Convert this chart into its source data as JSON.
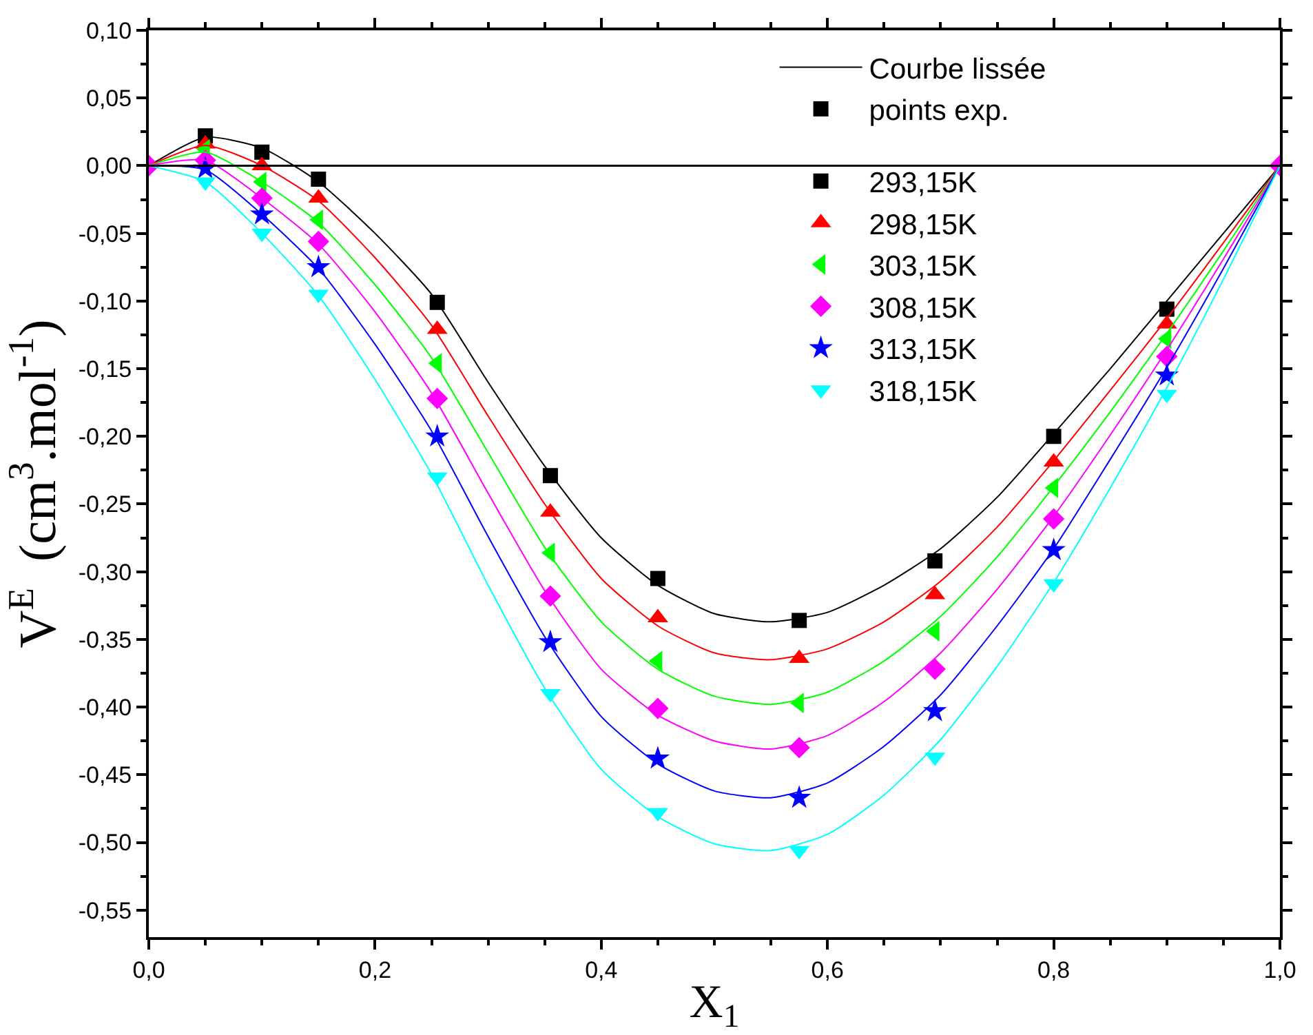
{
  "chart_data": {
    "type": "scatter",
    "xlabel": "X$_{1}$",
    "ylabel": "V$^{E}$  (cm$^{3}$.mol$^{-1}$)",
    "x": [
      0,
      0.05,
      0.1,
      0.15,
      0.255,
      0.355,
      0.45,
      0.575,
      0.695,
      0.8,
      0.9,
      1.0
    ],
    "xlim": [
      0,
      1
    ],
    "xticks": [
      {
        "value": 0,
        "label": "0,0"
      },
      {
        "value": 0.2,
        "label": "0,2"
      },
      {
        "value": 0.4,
        "label": "0,4"
      },
      {
        "value": 0.6,
        "label": "0,6"
      },
      {
        "value": 0.8,
        "label": "0,8"
      },
      {
        "value": 1,
        "label": "1,0"
      }
    ],
    "ylim": [
      -0.57,
      0.1
    ],
    "yticks": [
      {
        "value": 0.1,
        "label": "0,10"
      },
      {
        "value": 0.05,
        "label": "0,05"
      },
      {
        "value": 0,
        "label": "0,00"
      },
      {
        "value": -0.05,
        "label": "-0,05"
      },
      {
        "value": -0.1,
        "label": "-0,10"
      },
      {
        "value": -0.15,
        "label": "-0,15"
      },
      {
        "value": -0.2,
        "label": "-0,20"
      },
      {
        "value": -0.25,
        "label": "-0,25"
      },
      {
        "value": -0.3,
        "label": "-0,30"
      },
      {
        "value": -0.35,
        "label": "-0,35"
      },
      {
        "value": -0.4,
        "label": "-0,40"
      },
      {
        "value": -0.45,
        "label": "-0,45"
      },
      {
        "value": -0.5,
        "label": "-0,50"
      },
      {
        "value": -0.55,
        "label": "-0,55"
      }
    ],
    "legend": "top right",
    "ref_lines": [
      {
        "axis": "y",
        "value": 0,
        "color": "#000000"
      }
    ],
    "series": [
      {
        "name": "Courbe lissée",
        "type": "line",
        "color": "#000000",
        "x": [
          0,
          0.05,
          0.1,
          0.15,
          0.2,
          0.25,
          0.3,
          0.35,
          0.4,
          0.45,
          0.5,
          0.55,
          0.6,
          0.65,
          0.7,
          0.75,
          0.8,
          0.85,
          0.9,
          0.95,
          1
        ],
        "values": [
          0,
          0.021,
          0.013,
          -0.012,
          -0.05,
          -0.095,
          -0.16,
          -0.222,
          -0.275,
          -0.31,
          -0.331,
          -0.337,
          -0.33,
          -0.31,
          -0.283,
          -0.245,
          -0.198,
          -0.15,
          -0.1,
          -0.05,
          0
        ]
      },
      {
        "name": "points exp.",
        "type": "scatter",
        "color": "#000000",
        "marker": "square",
        "values": [
          null,
          null,
          null,
          null,
          null,
          null,
          null,
          null,
          null,
          null,
          null,
          null
        ]
      },
      {
        "name": "293,15K",
        "color": "#000000",
        "marker": "square",
        "values": [
          null,
          0.022,
          0.01,
          -0.01,
          -0.101,
          -0.229,
          -0.305,
          -0.336,
          -0.292,
          -0.2,
          -0.106,
          null
        ]
      },
      {
        "name": "298,15K",
        "color": "#ff0000",
        "marker": "triangle",
        "values": [
          null,
          0.016,
          0.0,
          -0.024,
          -0.121,
          -0.256,
          -0.334,
          -0.364,
          -0.317,
          -0.219,
          -0.117,
          null
        ]
      },
      {
        "name": "303,15K",
        "color": "#00ff00",
        "marker": "triangle-left",
        "values": [
          null,
          0.012,
          -0.012,
          -0.04,
          -0.146,
          -0.286,
          -0.366,
          -0.397,
          -0.344,
          -0.238,
          -0.128,
          null
        ]
      },
      {
        "name": "308,15K",
        "color": "#ff00ff",
        "marker": "diamond",
        "values": [
          0,
          0.004,
          -0.024,
          -0.056,
          -0.172,
          -0.318,
          -0.401,
          -0.43,
          -0.372,
          -0.261,
          -0.141,
          0
        ]
      },
      {
        "name": "313,15K",
        "color": "#0000ff",
        "marker": "star",
        "values": [
          null,
          -0.002,
          -0.036,
          -0.075,
          -0.2,
          -0.352,
          -0.438,
          -0.467,
          -0.403,
          -0.284,
          -0.155,
          null
        ]
      },
      {
        "name": "318,15K",
        "color": "#00ffff",
        "marker": "triangle-down",
        "values": [
          null,
          -0.012,
          -0.05,
          -0.095,
          -0.23,
          -0.39,
          -0.478,
          -0.506,
          -0.437,
          -0.309,
          -0.169,
          null
        ]
      },
      {
        "type": "line",
        "color": "#ff0000",
        "x": [
          0,
          0.05,
          0.1,
          0.15,
          0.2,
          0.25,
          0.3,
          0.35,
          0.4,
          0.45,
          0.5,
          0.55,
          0.6,
          0.65,
          0.7,
          0.75,
          0.8,
          0.85,
          0.9,
          0.95,
          1
        ],
        "values": [
          0,
          0.015,
          0.0,
          -0.026,
          -0.068,
          -0.118,
          -0.185,
          -0.25,
          -0.305,
          -0.34,
          -0.36,
          -0.365,
          -0.357,
          -0.337,
          -0.307,
          -0.267,
          -0.218,
          -0.166,
          -0.113,
          -0.057,
          0
        ]
      },
      {
        "type": "line",
        "color": "#00ff00",
        "x": [
          0,
          0.05,
          0.1,
          0.15,
          0.2,
          0.25,
          0.3,
          0.35,
          0.4,
          0.45,
          0.5,
          0.55,
          0.6,
          0.65,
          0.7,
          0.75,
          0.8,
          0.85,
          0.9,
          0.95,
          1
        ],
        "values": [
          0,
          0.01,
          -0.012,
          -0.042,
          -0.088,
          -0.142,
          -0.212,
          -0.282,
          -0.337,
          -0.372,
          -0.392,
          -0.398,
          -0.389,
          -0.366,
          -0.333,
          -0.289,
          -0.237,
          -0.182,
          -0.124,
          -0.063,
          0
        ]
      },
      {
        "type": "line",
        "color": "#ff00ff",
        "x": [
          0,
          0.05,
          0.1,
          0.15,
          0.2,
          0.25,
          0.3,
          0.35,
          0.4,
          0.45,
          0.5,
          0.55,
          0.6,
          0.65,
          0.7,
          0.75,
          0.8,
          0.85,
          0.9,
          0.95,
          1
        ],
        "values": [
          0,
          0.004,
          -0.024,
          -0.058,
          -0.108,
          -0.168,
          -0.242,
          -0.314,
          -0.372,
          -0.406,
          -0.425,
          -0.431,
          -0.421,
          -0.396,
          -0.36,
          -0.313,
          -0.259,
          -0.199,
          -0.136,
          -0.069,
          0
        ]
      },
      {
        "type": "line",
        "color": "#0000ff",
        "x": [
          0,
          0.05,
          0.1,
          0.15,
          0.2,
          0.25,
          0.3,
          0.35,
          0.4,
          0.45,
          0.5,
          0.55,
          0.6,
          0.65,
          0.7,
          0.75,
          0.8,
          0.85,
          0.9,
          0.95,
          1
        ],
        "values": [
          0,
          -0.003,
          -0.036,
          -0.076,
          -0.132,
          -0.196,
          -0.274,
          -0.348,
          -0.407,
          -0.442,
          -0.462,
          -0.467,
          -0.456,
          -0.429,
          -0.391,
          -0.34,
          -0.283,
          -0.217,
          -0.149,
          -0.076,
          0
        ]
      },
      {
        "type": "line",
        "color": "#00ffff",
        "x": [
          0,
          0.05,
          0.1,
          0.15,
          0.2,
          0.25,
          0.3,
          0.35,
          0.4,
          0.45,
          0.5,
          0.55,
          0.6,
          0.65,
          0.7,
          0.75,
          0.8,
          0.85,
          0.9,
          0.95,
          1
        ],
        "values": [
          0,
          -0.012,
          -0.05,
          -0.096,
          -0.158,
          -0.228,
          -0.31,
          -0.386,
          -0.446,
          -0.481,
          -0.501,
          -0.506,
          -0.494,
          -0.465,
          -0.424,
          -0.37,
          -0.308,
          -0.238,
          -0.164,
          -0.084,
          0
        ]
      }
    ]
  }
}
